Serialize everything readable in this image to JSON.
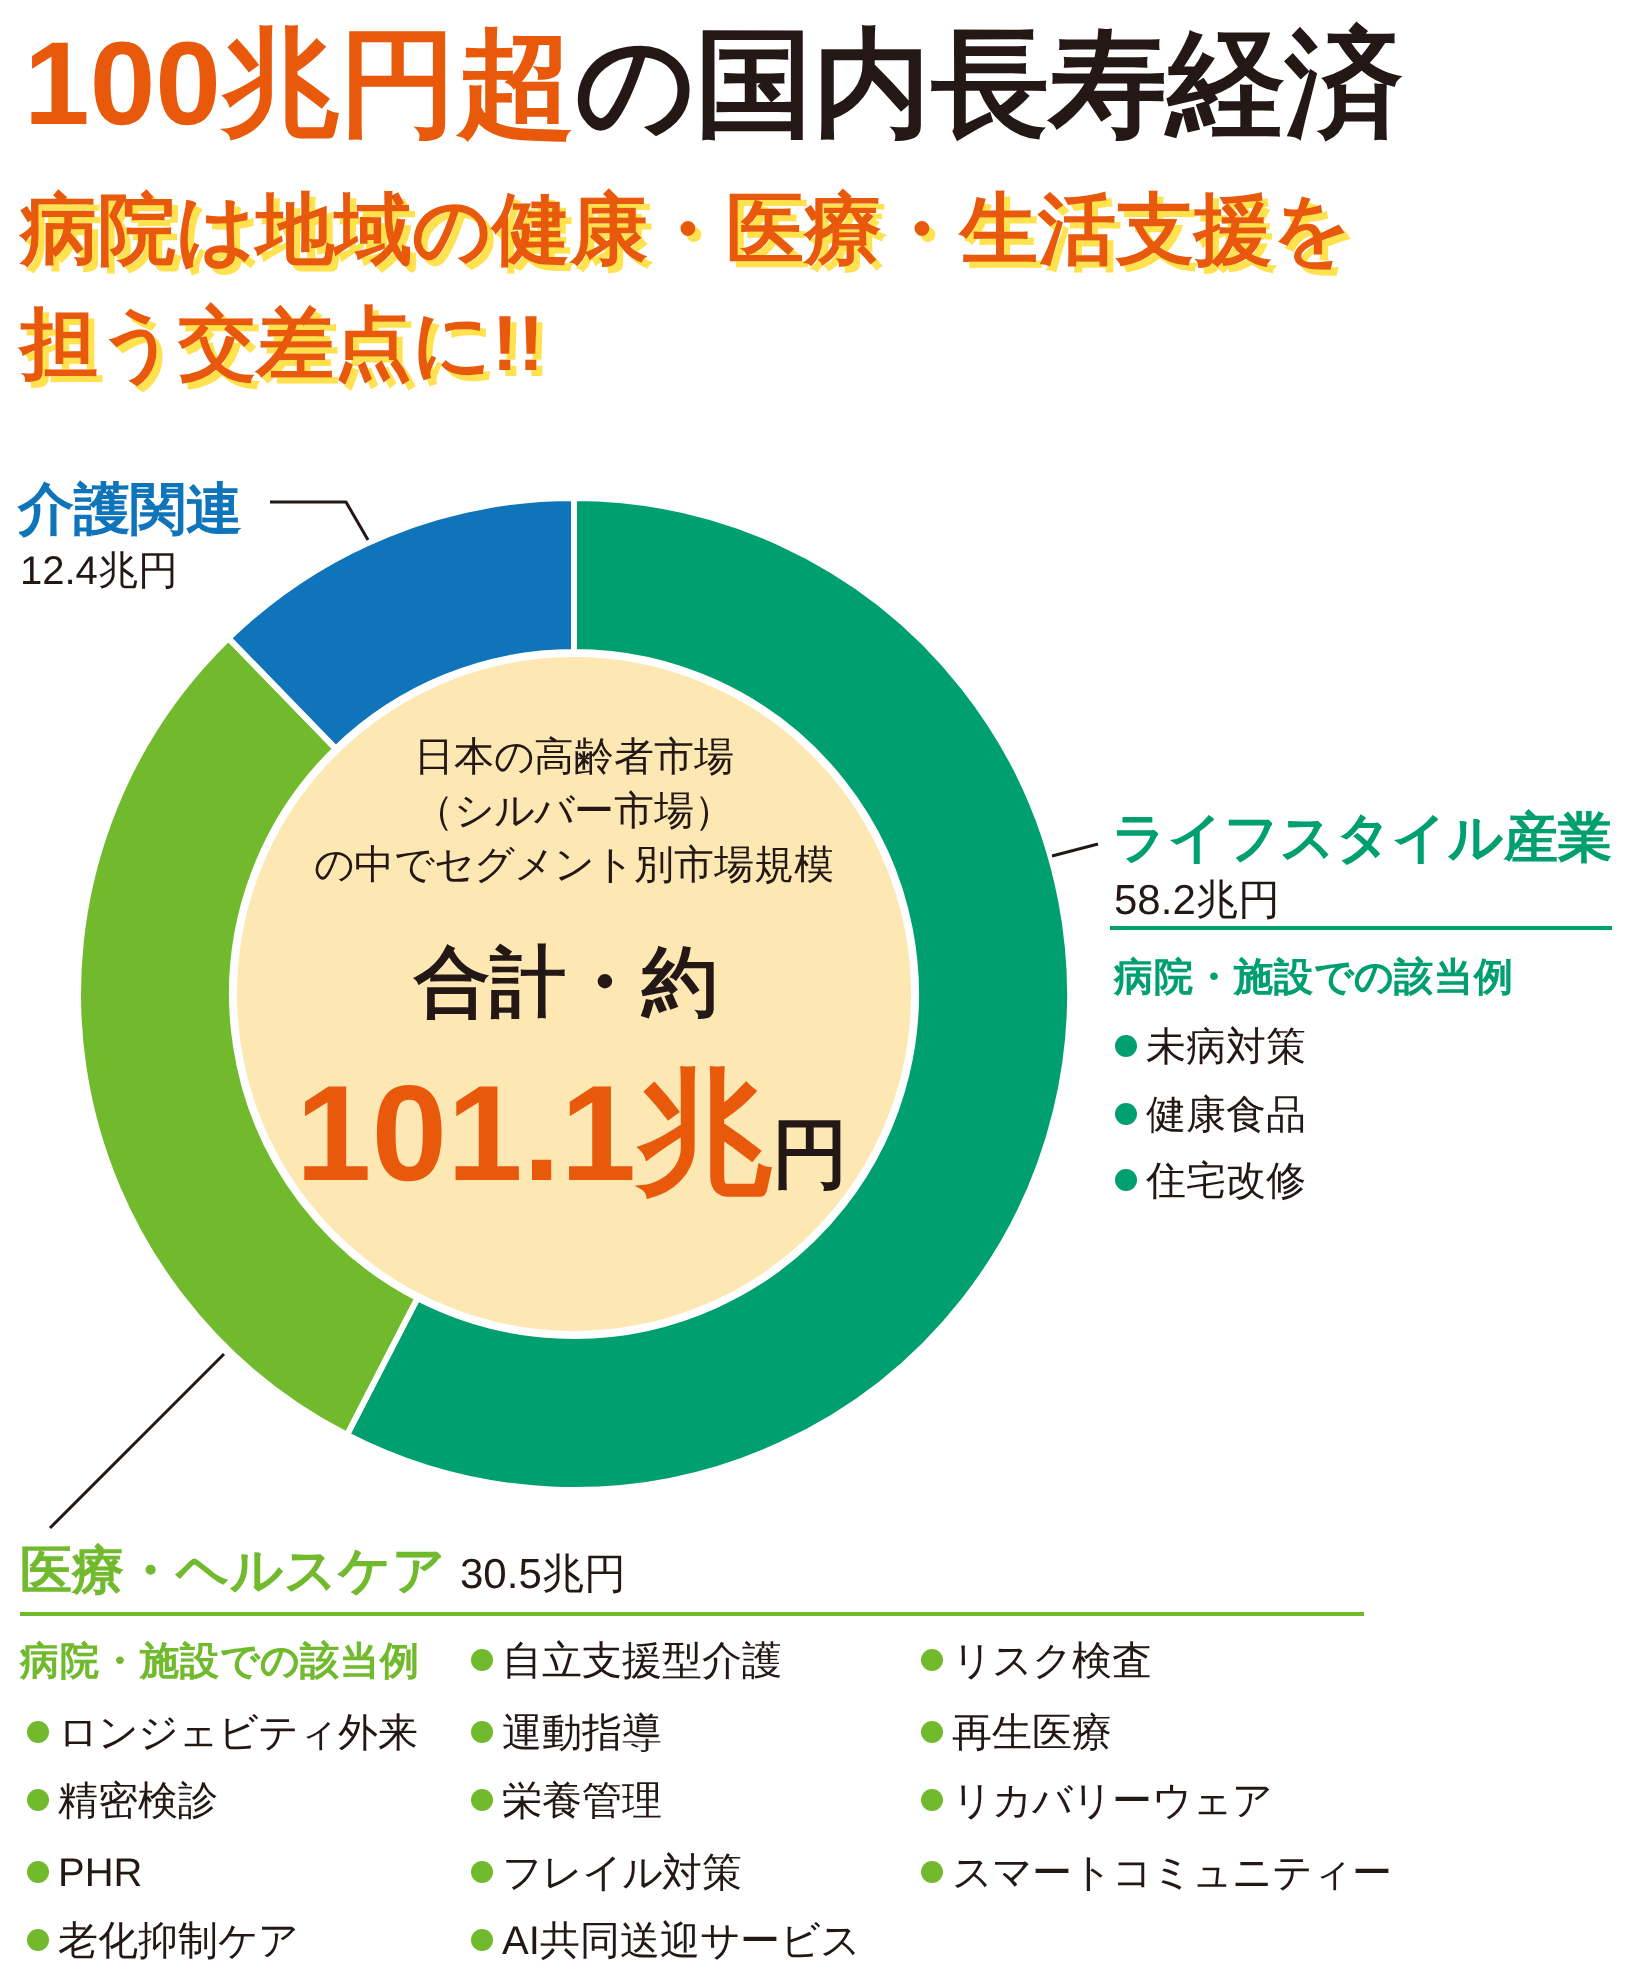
{
  "chart_data": {
    "type": "donut",
    "title": "100兆円超の国内長寿経済",
    "subtitle": "病院は地域の健康・医療・生活支援を担う交差点に!!",
    "categories": [
      "ライフスタイル産業",
      "医療・ヘルスケア",
      "介護関連"
    ],
    "values": [
      58.2,
      30.5,
      12.4
    ],
    "colors": [
      "#009f6f",
      "#71b92d",
      "#0f74ba"
    ],
    "value_labels": [
      "58.2兆円",
      "30.5兆円",
      "12.4兆円"
    ],
    "annotations": [
      "日本の高齢者市場",
      "（シルバー市場）",
      "の中でセグメント別市場規模",
      "合計・約",
      "101.1兆円",
      "病院・施設での該当例",
      "未病対策",
      "健康食品",
      "住宅改修",
      "病院・施設での該当例",
      "ロンジェビティ外来",
      "精密検診",
      "PHR",
      "老化抑制ケア",
      "自立支援型介護",
      "運動指導",
      "栄養管理",
      "フレイル対策",
      "AI共同送迎サービス",
      "リスク検査",
      "再生医療",
      "リカバリーウェア",
      "スマートコミュニティー"
    ]
  }
}
